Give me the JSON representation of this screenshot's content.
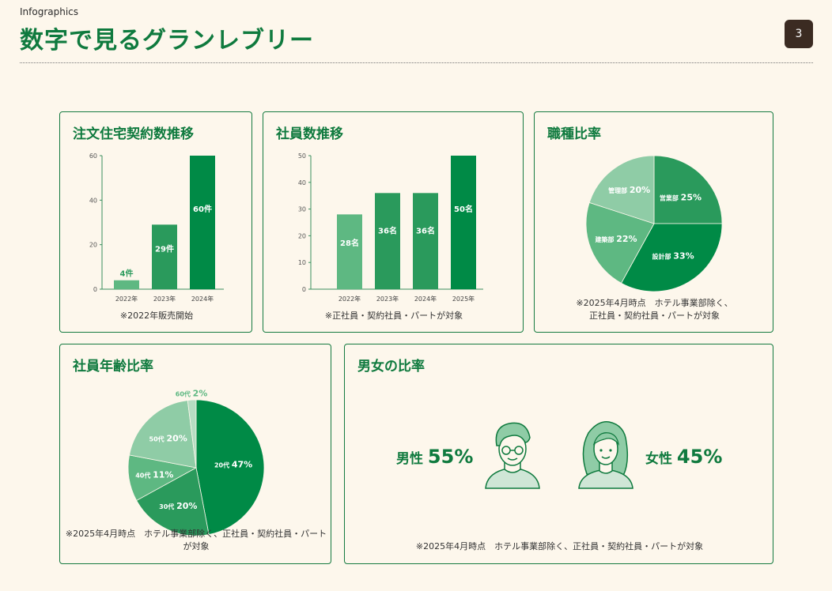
{
  "header": {
    "label": "Infographics",
    "title": "数字で見るグランレブリー",
    "page_number": "3"
  },
  "colors": {
    "accent": "#0f7a3e",
    "dark": "#008a46",
    "mid": "#2a9a5c",
    "light": "#5eb882",
    "lighter": "#8fcca6",
    "lightest": "#b6ddc3",
    "page_bg": "#fdf7ec"
  },
  "chart_data": [
    {
      "id": "orders",
      "type": "bar",
      "title": "注文住宅契約数推移",
      "categories": [
        "2022年",
        "2023年",
        "2024年"
      ],
      "values": [
        4,
        29,
        60
      ],
      "value_labels": [
        "4件",
        "29件",
        "60件"
      ],
      "ylim": [
        0,
        60
      ],
      "yticks": [
        "0",
        "20",
        "40",
        "60"
      ],
      "note": "※2022年販売開始"
    },
    {
      "id": "employees",
      "type": "bar",
      "title": "社員数推移",
      "categories": [
        "2022年",
        "2023年",
        "2024年",
        "2025年"
      ],
      "values": [
        28,
        36,
        36,
        50
      ],
      "value_labels": [
        "28名",
        "36名",
        "36名",
        "50名"
      ],
      "ylim": [
        0,
        50
      ],
      "yticks": [
        "0",
        "10",
        "20",
        "30",
        "40",
        "50"
      ],
      "note": "※正社員・契約社員・パートが対象"
    },
    {
      "id": "jobs",
      "type": "pie",
      "title": "職種比率",
      "slices": [
        {
          "label": "営業部",
          "value": 25,
          "value_label": "25%"
        },
        {
          "label": "設計部",
          "value": 33,
          "value_label": "33%"
        },
        {
          "label": "建築部",
          "value": 22,
          "value_label": "22%"
        },
        {
          "label": "管理部",
          "value": 20,
          "value_label": "20%"
        }
      ],
      "note_lines": [
        "※2025年4月時点　ホテル事業部除く、",
        "正社員・契約社員・パートが対象"
      ]
    },
    {
      "id": "ages",
      "type": "pie",
      "title": "社員年齢比率",
      "slices": [
        {
          "label": "20代",
          "value": 47,
          "value_label": "47%"
        },
        {
          "label": "30代",
          "value": 20,
          "value_label": "20%"
        },
        {
          "label": "40代",
          "value": 11,
          "value_label": "11%"
        },
        {
          "label": "50代",
          "value": 20,
          "value_label": "20%"
        },
        {
          "label": "60代",
          "value": 2,
          "value_label": "2%"
        }
      ],
      "note_lines": [
        "※2025年4月時点　ホテル事業部除く、正社員・契約社員・パート",
        "が対象"
      ]
    }
  ],
  "gender": {
    "title": "男女の比率",
    "male_label": "男性",
    "male_value": "55%",
    "female_label": "女性",
    "female_value": "45%",
    "note": "※2025年4月時点　ホテル事業部除く、正社員・契約社員・パートが対象"
  }
}
